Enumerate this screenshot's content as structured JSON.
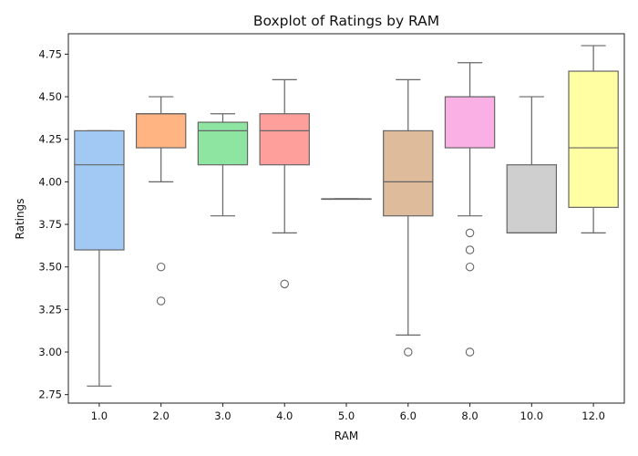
{
  "chart_data": {
    "type": "boxplot",
    "title": "Boxplot of Ratings by RAM",
    "xlabel": "RAM",
    "ylabel": "Ratings",
    "ylim": [
      2.7,
      4.87
    ],
    "yticks": [
      2.75,
      3.0,
      3.25,
      3.5,
      3.75,
      4.0,
      4.25,
      4.5,
      4.75
    ],
    "ytick_labels": [
      "2.75",
      "3.00",
      "3.25",
      "3.50",
      "3.75",
      "4.00",
      "4.25",
      "4.50",
      "4.75"
    ],
    "grid": false,
    "categories": [
      "1.0",
      "2.0",
      "3.0",
      "4.0",
      "5.0",
      "6.0",
      "8.0",
      "10.0",
      "12.0"
    ],
    "boxes": [
      {
        "category": "1.0",
        "whisker_low": 2.8,
        "q1": 3.6,
        "median": 4.1,
        "q3": 4.3,
        "whisker_high": 4.3,
        "outliers": [],
        "color": "#a1c9f4"
      },
      {
        "category": "2.0",
        "whisker_low": 4.0,
        "q1": 4.2,
        "median": 4.4,
        "q3": 4.4,
        "whisker_high": 4.5,
        "outliers": [
          3.5,
          3.3
        ],
        "color": "#ffb482"
      },
      {
        "category": "3.0",
        "whisker_low": 3.8,
        "q1": 4.1,
        "median": 4.3,
        "q3": 4.35,
        "whisker_high": 4.4,
        "outliers": [],
        "color": "#8de5a1"
      },
      {
        "category": "4.0",
        "whisker_low": 3.7,
        "q1": 4.1,
        "median": 4.3,
        "q3": 4.4,
        "whisker_high": 4.6,
        "outliers": [
          3.4
        ],
        "color": "#ff9f9b"
      },
      {
        "category": "5.0",
        "whisker_low": 3.9,
        "q1": 3.9,
        "median": 3.9,
        "q3": 3.9,
        "whisker_high": 3.9,
        "outliers": [],
        "color": "#d0bbff"
      },
      {
        "category": "6.0",
        "whisker_low": 3.1,
        "q1": 3.8,
        "median": 4.0,
        "q3": 4.3,
        "whisker_high": 4.6,
        "outliers": [
          3.0
        ],
        "color": "#debb9b"
      },
      {
        "category": "8.0",
        "whisker_low": 3.8,
        "q1": 4.2,
        "median": 4.5,
        "q3": 4.5,
        "whisker_high": 4.7,
        "outliers": [
          3.7,
          3.6,
          3.5,
          3.0
        ],
        "color": "#fab0e4"
      },
      {
        "category": "10.0",
        "whisker_low": 3.7,
        "q1": 3.7,
        "median": 3.7,
        "q3": 4.1,
        "whisker_high": 4.5,
        "outliers": [],
        "color": "#cfcfcf"
      },
      {
        "category": "12.0",
        "whisker_low": 3.7,
        "q1": 3.85,
        "median": 4.2,
        "q3": 4.65,
        "whisker_high": 4.8,
        "outliers": [],
        "color": "#fffea3"
      }
    ]
  }
}
